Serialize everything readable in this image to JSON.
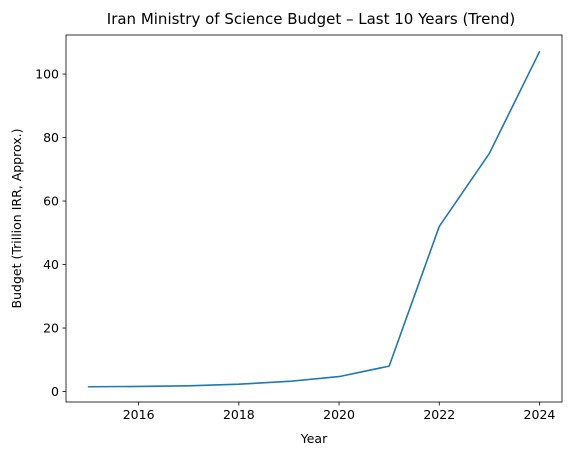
{
  "chart_data": {
    "type": "line",
    "title": "Iran Ministry of Science Budget – Last 10 Years (Trend)",
    "xlabel": "Year",
    "ylabel": "Budget (Trillion IRR, Approx.)",
    "x": [
      2015,
      2016,
      2017,
      2018,
      2019,
      2020,
      2021,
      2022,
      2023,
      2024
    ],
    "series": [
      {
        "values": [
          1.5,
          1.6,
          1.8,
          2.3,
          3.2,
          4.7,
          8.0,
          52.0,
          75.0,
          107.0
        ]
      }
    ],
    "xlim": [
      2014.55,
      2024.45
    ],
    "ylim": [
      -3.3,
      112.3
    ],
    "xticks": [
      2016,
      2018,
      2020,
      2022,
      2024
    ],
    "xtick_labels": [
      "2016",
      "2018",
      "2020",
      "2022",
      "2024"
    ],
    "yticks": [
      0,
      20,
      40,
      60,
      80,
      100
    ],
    "ytick_labels": [
      "0",
      "20",
      "40",
      "60",
      "80",
      "100"
    ],
    "grid": false,
    "line_color": "#1f77b4"
  }
}
